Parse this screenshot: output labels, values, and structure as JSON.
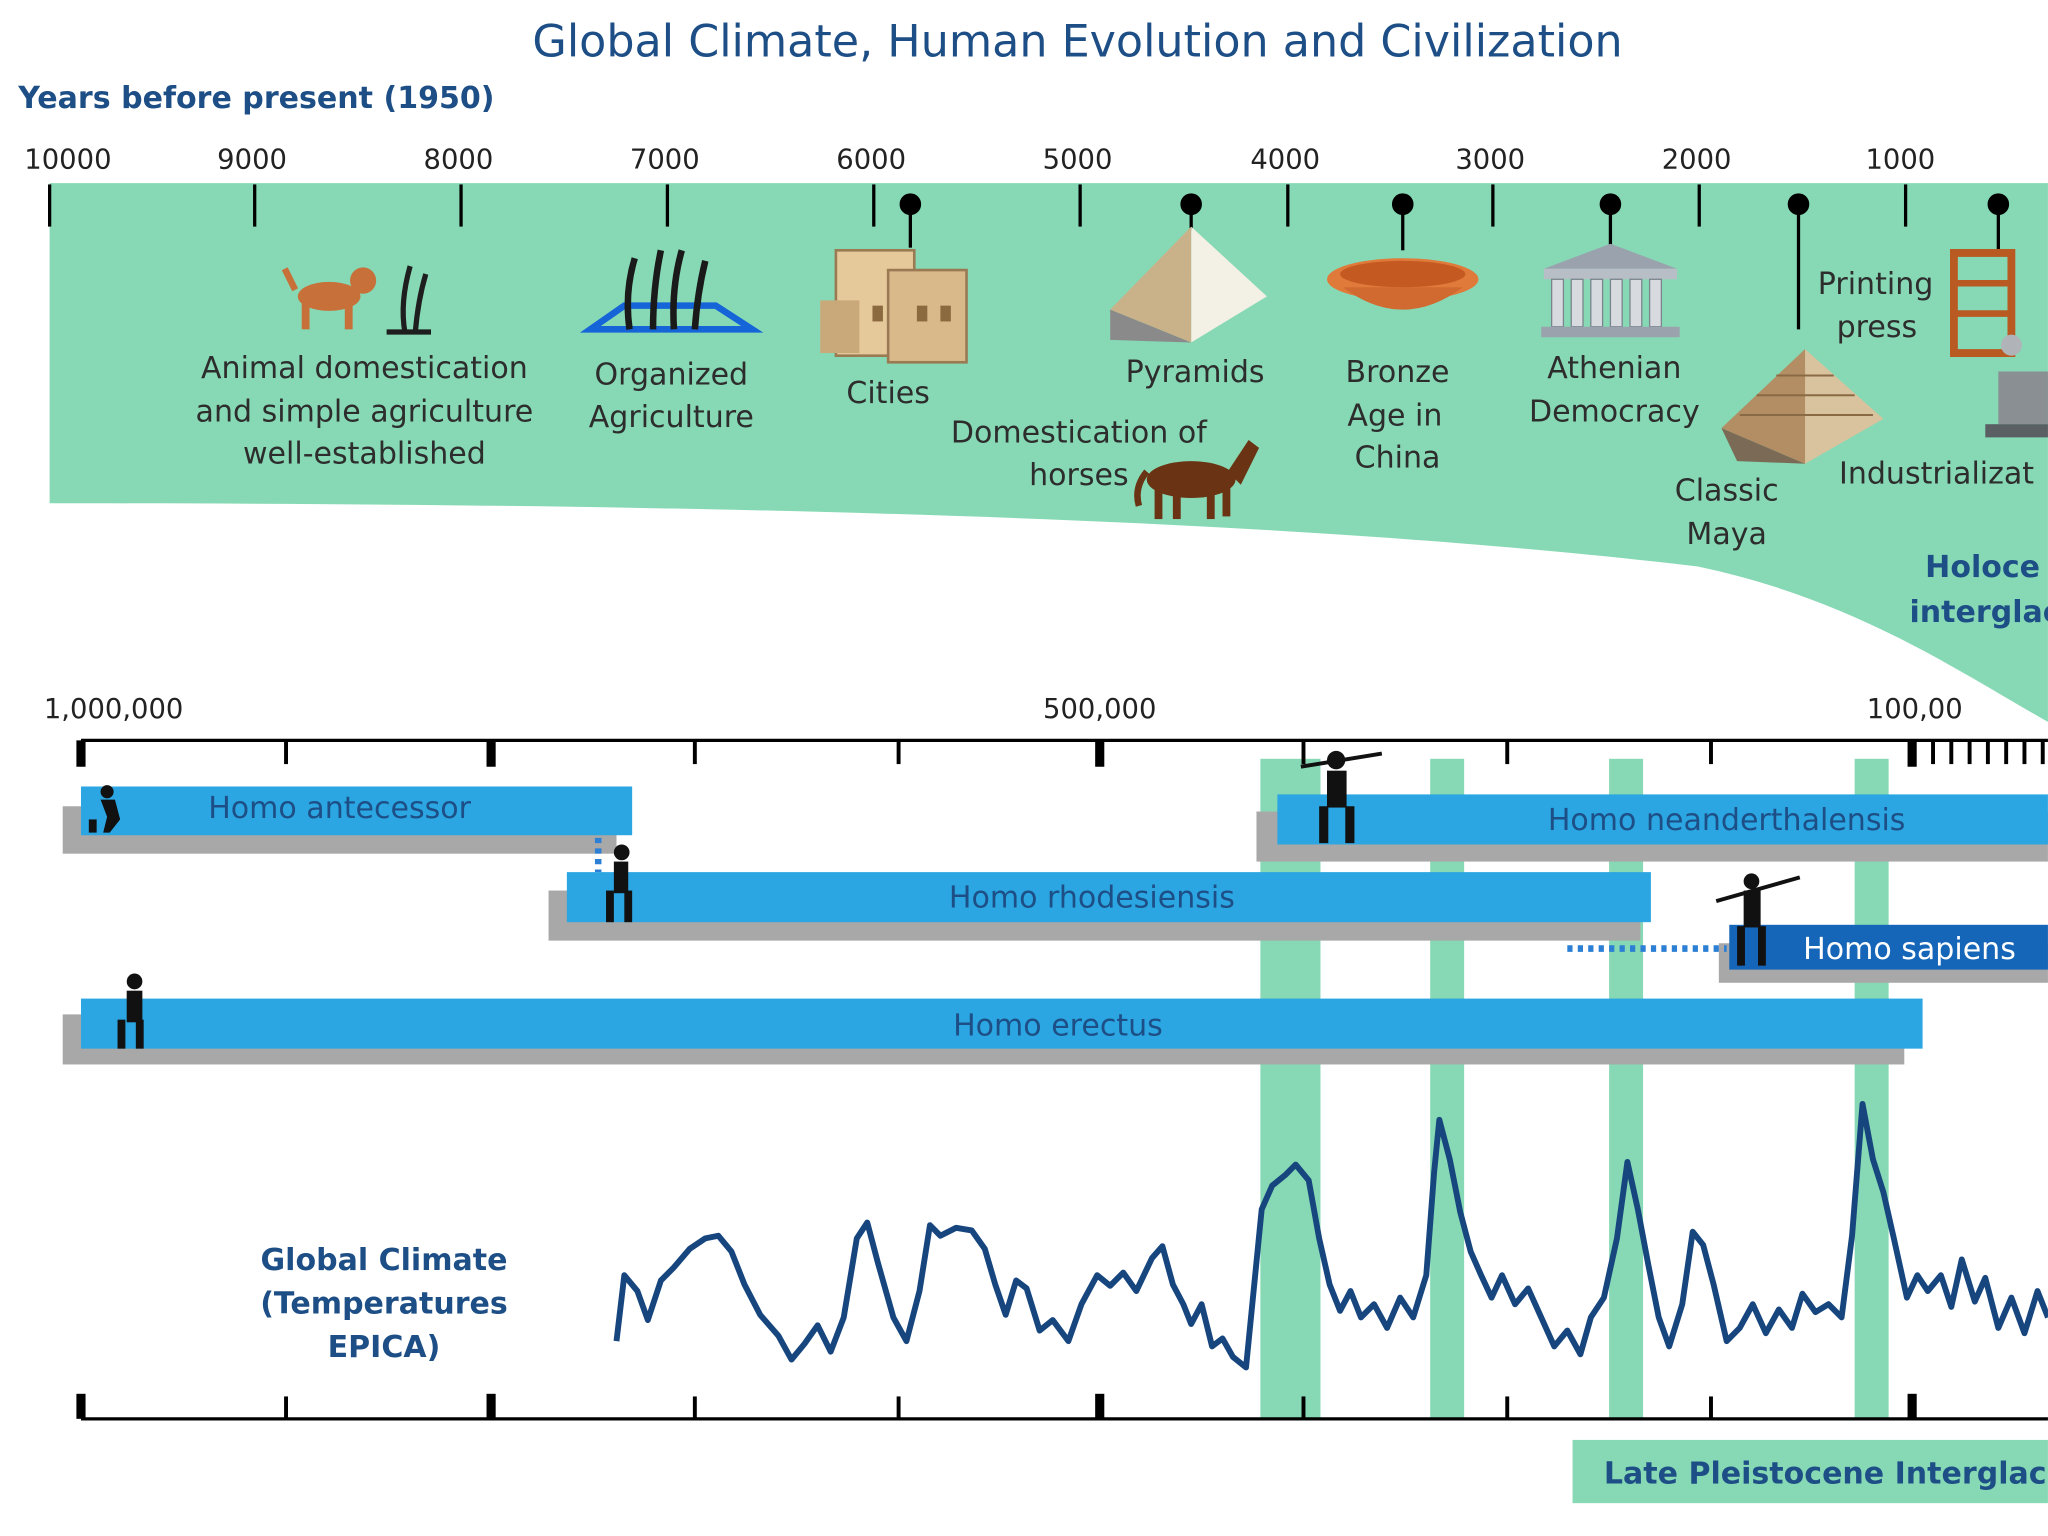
{
  "title": "Global Climate, Human Evolution and Civilization",
  "upper_axis": {
    "label": "Years before present (1950)",
    "ticks": [
      "10000",
      "9000",
      "8000",
      "7000",
      "6000",
      "5000",
      "4000",
      "3000",
      "2000",
      "1000"
    ]
  },
  "events": [
    {
      "id": "agriculture",
      "lines": [
        "Animal domestication",
        "and simple agriculture",
        "well-established"
      ]
    },
    {
      "id": "organized",
      "lines": [
        "Organized",
        "Agriculture"
      ]
    },
    {
      "id": "cities",
      "lines": [
        "Cities"
      ]
    },
    {
      "id": "pyramids",
      "lines": [
        "Pyramids"
      ]
    },
    {
      "id": "horses",
      "lines": [
        "Domestication of",
        "horses"
      ]
    },
    {
      "id": "bronze",
      "lines": [
        "Bronze",
        "Age in",
        "China"
      ]
    },
    {
      "id": "athens",
      "lines": [
        "Athenian",
        "Democracy"
      ]
    },
    {
      "id": "printing",
      "lines": [
        "Printing",
        "press"
      ]
    },
    {
      "id": "maya",
      "lines": [
        "Classic",
        "Maya"
      ]
    },
    {
      "id": "industrial",
      "lines": [
        "Industrializat"
      ]
    }
  ],
  "holocene": {
    "lines": [
      "Holoce",
      "interglac"
    ]
  },
  "lower_axis": {
    "ticks": [
      "1,000,000",
      "500,000",
      "100,00"
    ]
  },
  "species": [
    {
      "id": "antecessor",
      "name": "Homo antecessor"
    },
    {
      "id": "neanderthalensis",
      "name": "Homo neanderthalensis"
    },
    {
      "id": "rhodesiensis",
      "name": "Homo rhodesiensis"
    },
    {
      "id": "sapiens",
      "name": "Homo sapiens"
    },
    {
      "id": "erectus",
      "name": "Homo erectus"
    }
  ],
  "climate": {
    "lines": [
      "Global Climate",
      "(Temperatures",
      "EPICA)"
    ]
  },
  "late_pleistocene": {
    "label": "Late Pleistocene Interglaci"
  },
  "colors": {
    "green": "#86d9b4",
    "blue": "#2ba6e2",
    "navy": "#1d4f86",
    "dark_blue": "#1565b8",
    "gray": "#a8a8a8"
  }
}
